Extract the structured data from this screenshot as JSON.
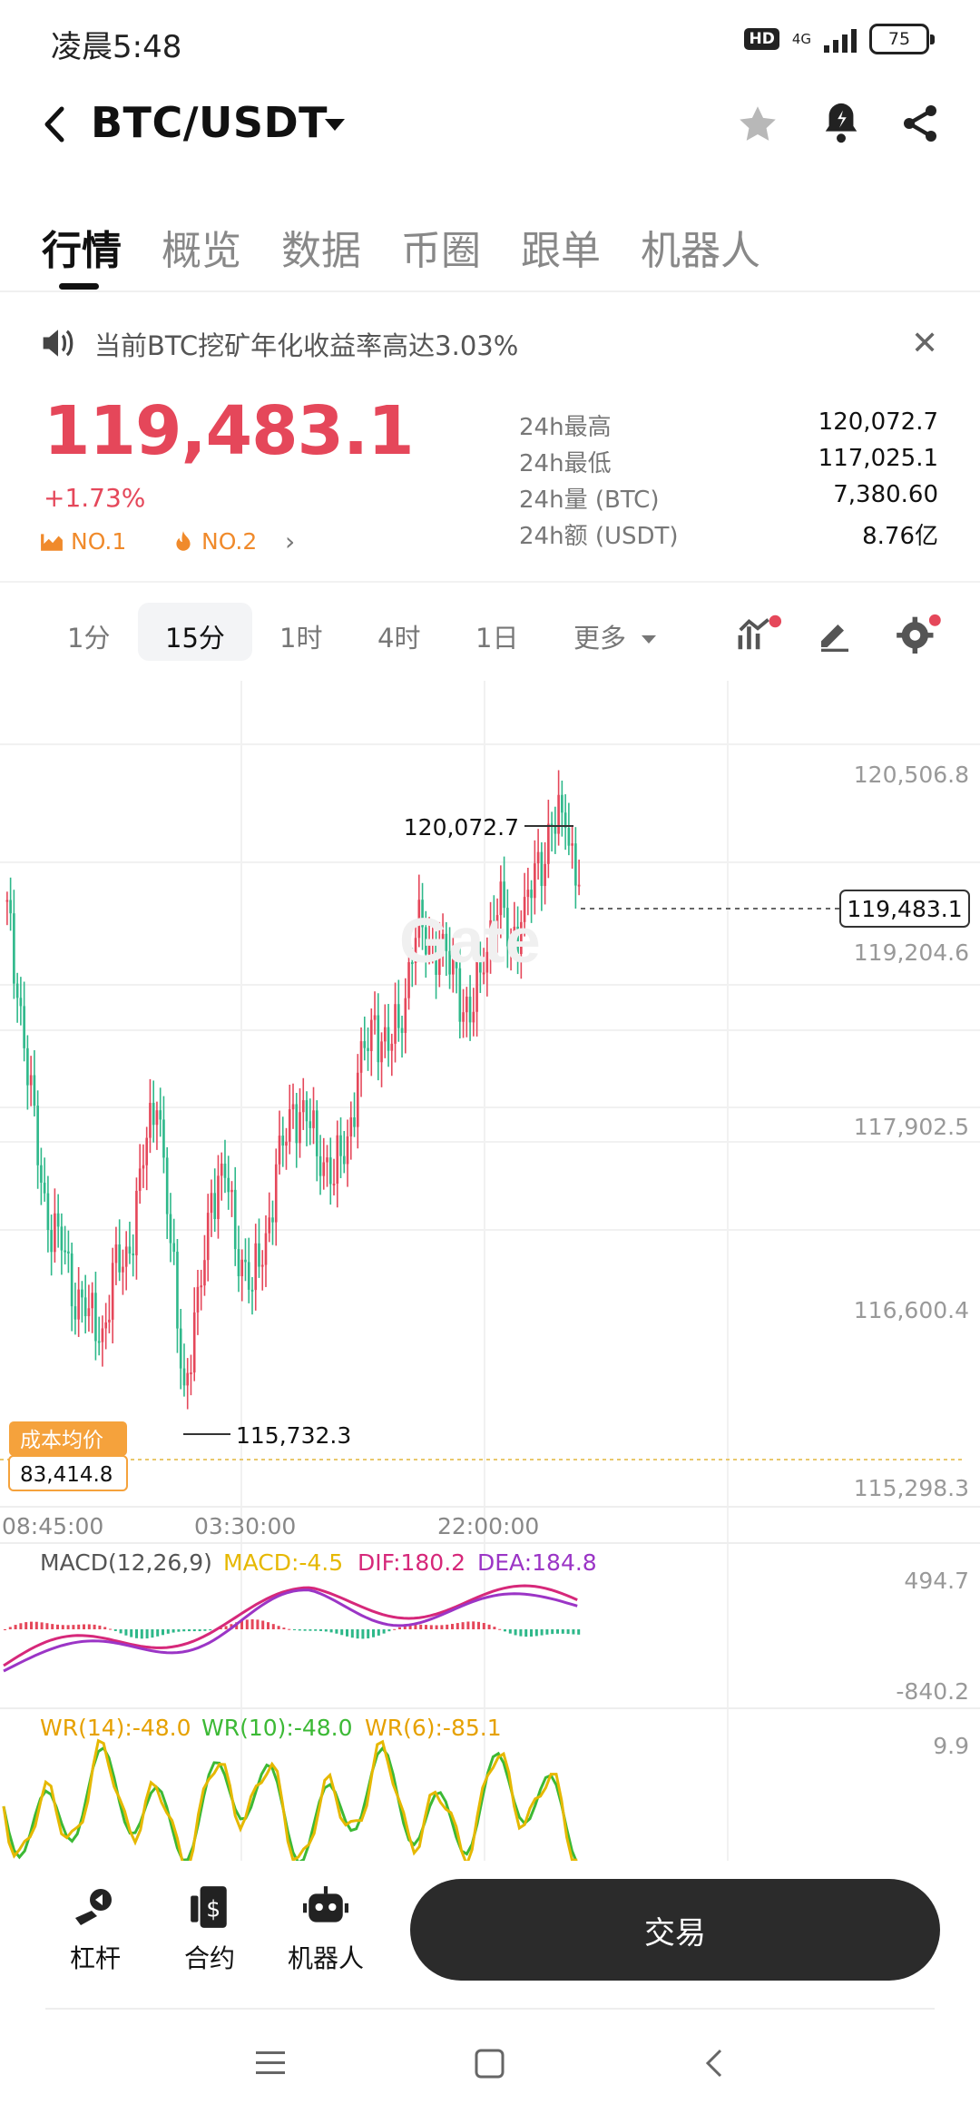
{
  "status_bar": {
    "time": "凌晨5:48",
    "hd": "HD",
    "network": "4G",
    "battery": "75"
  },
  "header": {
    "pair": "BTC/USDT"
  },
  "tabs": [
    "行情",
    "概览",
    "数据",
    "币圈",
    "跟单",
    "机器人"
  ],
  "notice": {
    "text": "当前BTC挖矿年化收益率高达3.03%"
  },
  "ticker": {
    "price": "119,483.1",
    "change": "+1.73%",
    "rank1": "NO.1",
    "rank2": "NO.2",
    "stats": [
      {
        "label": "24h最高",
        "value": "120,072.7"
      },
      {
        "label": "24h最低",
        "value": "117,025.1"
      },
      {
        "label": "24h量 (BTC)",
        "value": "7,380.60"
      },
      {
        "label": "24h额 (USDT)",
        "value": "8.76亿"
      }
    ],
    "colors": {
      "up": "#e5475a",
      "down": "#2eb88a",
      "rank": "#f08a2b"
    }
  },
  "intervals": {
    "items": [
      "1分",
      "15分",
      "1时",
      "4时",
      "1日",
      "更多"
    ],
    "selected": "15分"
  },
  "chart": {
    "price_axis": [
      "120,506.8",
      "119,204.6",
      "117,902.5",
      "116,600.4",
      "115,298.3"
    ],
    "time_axis": [
      "08:45:00",
      "03:30:00",
      "22:00:00"
    ],
    "high_marker": "120,072.7",
    "low_marker": "115,732.3",
    "current_price_tag": "119,483.1",
    "cost_label": "成本均价",
    "cost_value": "83,414.8",
    "watermark": "Gate",
    "macd": {
      "title": "MACD(12,26,9)",
      "macd": "MACD:-4.5",
      "dif": "DIF:180.2",
      "dea": "DEA:184.8",
      "axis_top": "494.7",
      "axis_bottom": "-840.2"
    },
    "wr": {
      "wr14": "WR(14):-48.0",
      "wr10": "WR(10):-48.0",
      "wr6": "WR(6):-85.1",
      "axis_top": "9.9"
    }
  },
  "chart_data": {
    "type": "candlestick",
    "interval": "15分",
    "ylim": [
      115298.3,
      120506.8
    ],
    "y_ticks": [
      120506.8,
      119204.6,
      117902.5,
      116600.4,
      115298.3
    ],
    "x_ticks": [
      "08:45:00",
      "03:30:00",
      "22:00:00"
    ],
    "high": 120072.7,
    "low": 115732.3,
    "last": 119483.1,
    "cost_average": 83414.8,
    "close_series_approx": [
      119300,
      118600,
      117700,
      117100,
      116900,
      116600,
      116400,
      116300,
      116700,
      116900,
      117500,
      118100,
      116900,
      115900,
      116400,
      117300,
      117400,
      116900,
      116600,
      117000,
      117500,
      117900,
      117800,
      117600,
      117400,
      117700,
      118200,
      118500,
      118300,
      118600,
      119200,
      119100,
      119000,
      118800,
      118500,
      119000,
      119400,
      119100,
      119300,
      119600,
      119900,
      120000,
      119500
    ]
  },
  "bottom_bar": {
    "items": [
      "杠杆",
      "合约",
      "机器人"
    ],
    "trade_label": "交易"
  }
}
